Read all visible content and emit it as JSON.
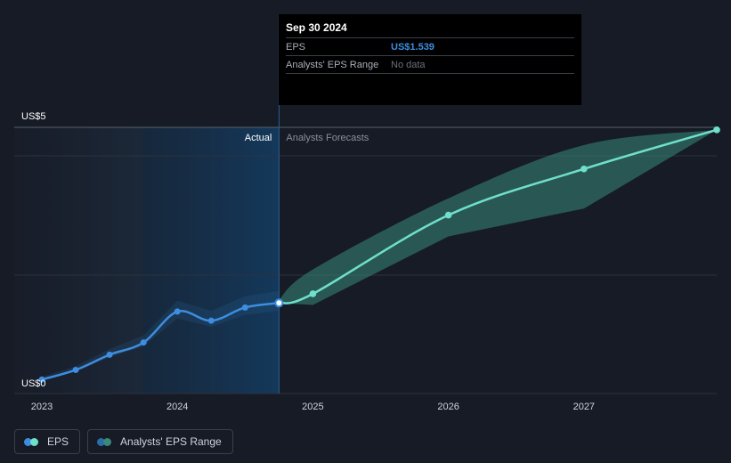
{
  "tooltip": {
    "date": "Sep 30 2024",
    "rows": [
      {
        "label": "EPS",
        "value": "US$1.539"
      },
      {
        "label": "Analysts' EPS Range",
        "value": "No data"
      }
    ]
  },
  "chart_data": {
    "type": "line",
    "y_axis": {
      "labels": [
        "US$5",
        "US$0"
      ],
      "ylim": [
        0,
        5
      ]
    },
    "x_axis": {
      "ticks": [
        "2023",
        "2024",
        "2025",
        "2026",
        "2027"
      ],
      "xlim": [
        2022.85,
        2027.98
      ]
    },
    "section_labels": {
      "actual": "Actual",
      "forecast": "Analysts Forecasts"
    },
    "series": [
      {
        "name": "EPS",
        "color": "#3d8de0",
        "points": [
          {
            "x": 2023.0,
            "y": 0.03
          },
          {
            "x": 2023.25,
            "y": 0.22
          },
          {
            "x": 2023.5,
            "y": 0.52
          },
          {
            "x": 2023.75,
            "y": 0.76
          },
          {
            "x": 2024.0,
            "y": 1.37
          },
          {
            "x": 2024.25,
            "y": 1.19
          },
          {
            "x": 2024.5,
            "y": 1.45
          },
          {
            "x": 2024.75,
            "y": 1.539
          }
        ]
      },
      {
        "name": "EPS forecast",
        "color": "#6fe0cc",
        "points": [
          {
            "x": 2024.75,
            "y": 1.539
          },
          {
            "x": 2025.0,
            "y": 1.72
          },
          {
            "x": 2026.0,
            "y": 3.27
          },
          {
            "x": 2027.0,
            "y": 4.18
          },
          {
            "x": 2027.98,
            "y": 4.95
          }
        ]
      },
      {
        "name": "Analysts' EPS Range",
        "color": "#3a8a7a",
        "upper": [
          {
            "x": 2024.75,
            "y": 1.6
          },
          {
            "x": 2025.0,
            "y": 2.2
          },
          {
            "x": 2026.0,
            "y": 3.6
          },
          {
            "x": 2027.0,
            "y": 4.65
          },
          {
            "x": 2027.98,
            "y": 4.95
          }
        ],
        "lower": [
          {
            "x": 2024.75,
            "y": 1.539
          },
          {
            "x": 2025.0,
            "y": 1.5
          },
          {
            "x": 2026.0,
            "y": 2.85
          },
          {
            "x": 2027.0,
            "y": 3.4
          },
          {
            "x": 2027.98,
            "y": 4.95
          }
        ]
      }
    ],
    "grid": true,
    "legend": {
      "position": "bottom-left",
      "items": [
        {
          "label": "EPS",
          "colors": [
            "#3d8de0",
            "#6fe0cc"
          ]
        },
        {
          "label": "Analysts' EPS Range",
          "colors": [
            "#2a6ea8",
            "#3a8a7a"
          ]
        }
      ]
    }
  }
}
